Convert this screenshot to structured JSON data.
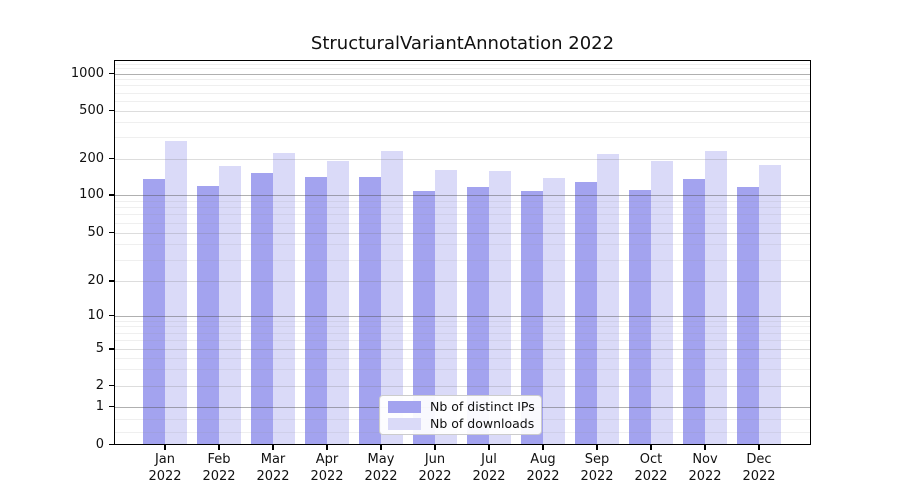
{
  "chart_data": {
    "type": "bar",
    "title": "StructuralVariantAnnotation 2022",
    "year": "2022",
    "categories": [
      "Jan",
      "Feb",
      "Mar",
      "Apr",
      "May",
      "Jun",
      "Jul",
      "Aug",
      "Sep",
      "Oct",
      "Nov",
      "Dec"
    ],
    "series": [
      {
        "name": "Nb of distinct IPs",
        "color": "#a3a3ef",
        "values": [
          136,
          119,
          151,
          141,
          142,
          107,
          117,
          107,
          127,
          111,
          135,
          117
        ]
      },
      {
        "name": "Nb of downloads",
        "color": "#dadaf8",
        "values": [
          281,
          174,
          222,
          190,
          230,
          160,
          157,
          139,
          216,
          190,
          231,
          178
        ]
      }
    ],
    "yticks": [
      0,
      1,
      2,
      5,
      10,
      20,
      50,
      100,
      200,
      500,
      1000
    ],
    "yscale": "symlog",
    "ylim": [
      0,
      1260
    ],
    "grid": true,
    "legend_position": "lower center"
  }
}
